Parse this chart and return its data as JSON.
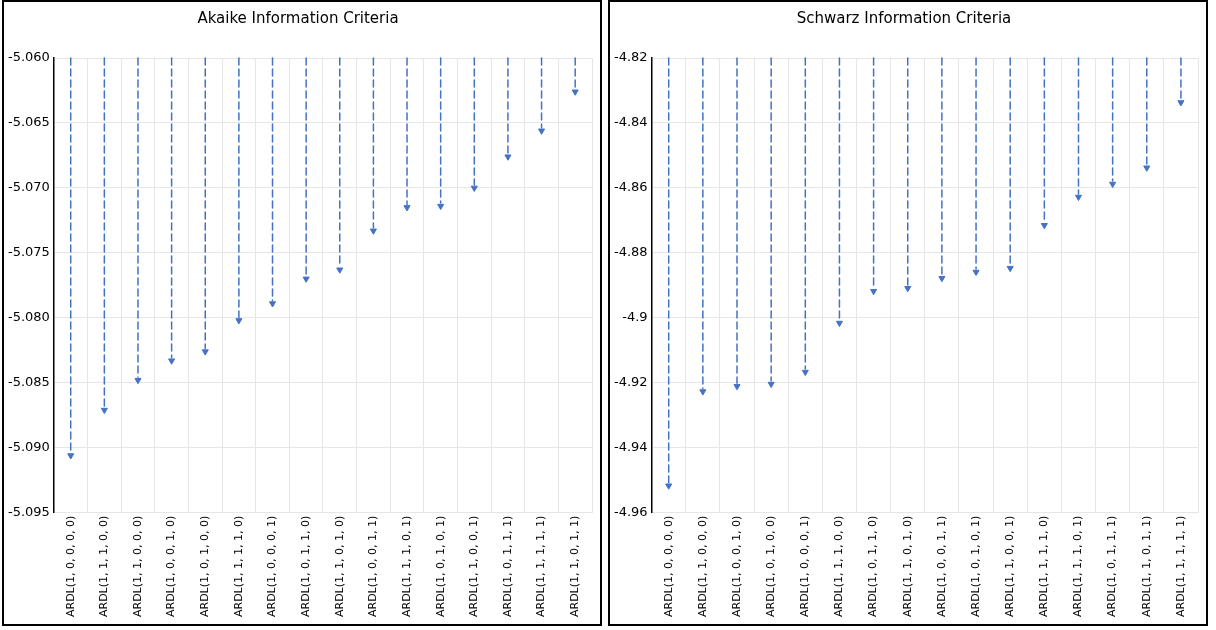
{
  "chart_data": [
    {
      "type": "lollipop",
      "title": "Akaike Information Criteria",
      "categories": [
        "ARDL(1, 0, 0, 0, 0)",
        "ARDL(1, 1, 1, 0, 0)",
        "ARDL(1, 1, 0, 0, 0)",
        "ARDL(1, 0, 0, 1, 0)",
        "ARDL(1, 0, 1, 0, 0)",
        "ARDL(1, 1, 1, 1, 0)",
        "ARDL(1, 0, 0, 0, 1)",
        "ARDL(1, 0, 1, 1, 0)",
        "ARDL(1, 1, 0, 1, 0)",
        "ARDL(1, 0, 0, 1, 1)",
        "ARDL(1, 1, 1, 0, 1)",
        "ARDL(1, 0, 1, 0, 1)",
        "ARDL(1, 1, 0, 0, 1)",
        "ARDL(1, 0, 1, 1, 1)",
        "ARDL(1, 1, 1, 1, 1)",
        "ARDL(1, 1, 0, 1, 1)"
      ],
      "values": [
        -5.0906,
        -5.0871,
        -5.0848,
        -5.0833,
        -5.0826,
        -5.0802,
        -5.0789,
        -5.077,
        -5.0763,
        -5.0733,
        -5.0715,
        -5.0714,
        -5.07,
        -5.0676,
        -5.0656,
        -5.0626
      ],
      "color": "#4472c4",
      "ylim": [
        -5.095,
        -5.06
      ],
      "yticks": [
        {
          "value": -5.095,
          "label": "-5.095"
        },
        {
          "value": -5.09,
          "label": "-5.090"
        },
        {
          "value": -5.085,
          "label": "-5.085"
        },
        {
          "value": -5.08,
          "label": "-5.080"
        },
        {
          "value": -5.075,
          "label": "-5.075"
        },
        {
          "value": -5.07,
          "label": "-5.070"
        },
        {
          "value": -5.065,
          "label": "-5.065"
        },
        {
          "value": -5.06,
          "label": "-5.060"
        }
      ],
      "grid": true,
      "marker": "triangle",
      "line_style": "dashed"
    },
    {
      "type": "lollipop",
      "title": "Schwarz Information Criteria",
      "categories": [
        "ARDL(1, 0, 0, 0, 0)",
        "ARDL(1, 1, 0, 0, 0)",
        "ARDL(1, 0, 0, 1, 0)",
        "ARDL(1, 0, 1, 0, 0)",
        "ARDL(1, 0, 0, 0, 1)",
        "ARDL(1, 1, 1, 0, 0)",
        "ARDL(1, 0, 1, 1, 0)",
        "ARDL(1, 1, 0, 1, 0)",
        "ARDL(1, 0, 0, 1, 1)",
        "ARDL(1, 0, 1, 0, 1)",
        "ARDL(1, 1, 0, 0, 1)",
        "ARDL(1, 1, 1, 1, 0)",
        "ARDL(1, 1, 1, 0, 1)",
        "ARDL(1, 0, 1, 1, 1)",
        "ARDL(1, 1, 0, 1, 1)",
        "ARDL(1, 1, 1, 1, 1)"
      ],
      "values": [
        -4.9517,
        -4.9227,
        -4.9211,
        -4.9204,
        -4.9167,
        -4.9016,
        -4.8918,
        -4.8909,
        -4.8878,
        -4.8859,
        -4.8847,
        -4.8715,
        -4.8628,
        -4.8588,
        -4.8538,
        -4.8337
      ],
      "color": "#4472c4",
      "ylim": [
        -4.96,
        -4.82
      ],
      "yticks": [
        -4.96,
        -4.94,
        -4.92,
        -4.9,
        -4.88,
        -4.86,
        -4.84,
        -4.82
      ],
      "grid": true,
      "marker": "triangle",
      "line_style": "dashed"
    }
  ]
}
